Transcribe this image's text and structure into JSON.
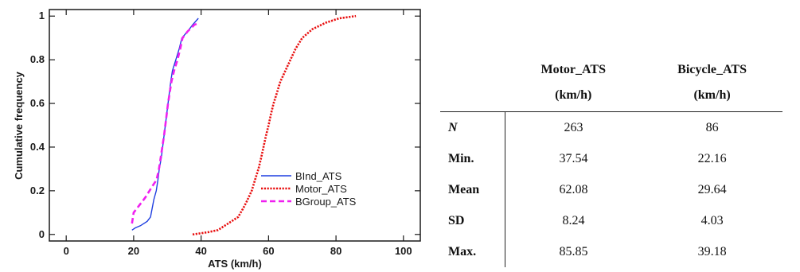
{
  "chart_data": {
    "type": "line",
    "title": "",
    "xlabel": "ATS (km/h)",
    "ylabel": "Cumulative frequency",
    "xlim": [
      -5,
      105
    ],
    "ylim": [
      -0.03,
      1.03
    ],
    "x_ticks": [
      0,
      20,
      40,
      60,
      80,
      100
    ],
    "y_ticks": [
      0,
      0.2,
      0.4,
      0.6,
      0.8,
      1
    ],
    "x_tick_labels": [
      "0",
      "20",
      "40",
      "60",
      "80",
      "100"
    ],
    "y_tick_labels": [
      "0",
      "0.2",
      "0.4",
      "0.6",
      "0.8",
      "1"
    ],
    "grid": false,
    "legend_position": "bottom-right",
    "series": [
      {
        "name": "BInd_ATS",
        "color": "#1f3fe0",
        "dash": "solid",
        "points": [
          [
            19.5,
            0.02
          ],
          [
            20.5,
            0.03
          ],
          [
            22,
            0.04
          ],
          [
            24,
            0.06
          ],
          [
            25,
            0.08
          ],
          [
            25.5,
            0.12
          ],
          [
            26,
            0.16
          ],
          [
            26.7,
            0.2
          ],
          [
            27.2,
            0.25
          ],
          [
            27.6,
            0.3
          ],
          [
            28.2,
            0.35
          ],
          [
            28.6,
            0.4
          ],
          [
            29,
            0.45
          ],
          [
            29.4,
            0.5
          ],
          [
            29.8,
            0.55
          ],
          [
            30.2,
            0.6
          ],
          [
            30.6,
            0.65
          ],
          [
            31,
            0.7
          ],
          [
            31.5,
            0.75
          ],
          [
            32.5,
            0.8
          ],
          [
            33.5,
            0.85
          ],
          [
            34.3,
            0.9
          ],
          [
            36,
            0.93
          ],
          [
            37.5,
            0.96
          ],
          [
            39.2,
            0.99
          ]
        ]
      },
      {
        "name": "Motor_ATS",
        "color": "#e81010",
        "dash": "dotted",
        "points": [
          [
            37.5,
            0.0
          ],
          [
            42,
            0.01
          ],
          [
            45,
            0.02
          ],
          [
            47,
            0.04
          ],
          [
            49,
            0.06
          ],
          [
            51,
            0.08
          ],
          [
            52.5,
            0.12
          ],
          [
            53.5,
            0.15
          ],
          [
            55,
            0.2
          ],
          [
            56,
            0.25
          ],
          [
            57,
            0.3
          ],
          [
            57.8,
            0.35
          ],
          [
            58.5,
            0.4
          ],
          [
            59.2,
            0.45
          ],
          [
            60,
            0.5
          ],
          [
            60.7,
            0.55
          ],
          [
            61.5,
            0.6
          ],
          [
            62.5,
            0.65
          ],
          [
            63.5,
            0.7
          ],
          [
            65,
            0.75
          ],
          [
            66.5,
            0.8
          ],
          [
            68,
            0.85
          ],
          [
            70,
            0.9
          ],
          [
            73,
            0.94
          ],
          [
            77,
            0.97
          ],
          [
            81,
            0.99
          ],
          [
            85.9,
            1.0
          ]
        ]
      },
      {
        "name": "BGroup_ATS",
        "color": "#f020f0",
        "dash": "dashed",
        "points": [
          [
            19.5,
            0.05
          ],
          [
            20,
            0.1
          ],
          [
            21.5,
            0.13
          ],
          [
            23.5,
            0.17
          ],
          [
            25.5,
            0.22
          ],
          [
            26.8,
            0.25
          ],
          [
            27.5,
            0.3
          ],
          [
            28,
            0.35
          ],
          [
            28.5,
            0.4
          ],
          [
            29,
            0.45
          ],
          [
            29.4,
            0.5
          ],
          [
            29.8,
            0.55
          ],
          [
            30.2,
            0.6
          ],
          [
            30.7,
            0.65
          ],
          [
            31.2,
            0.7
          ],
          [
            32,
            0.75
          ],
          [
            33,
            0.8
          ],
          [
            33.8,
            0.85
          ],
          [
            34.5,
            0.9
          ],
          [
            36,
            0.93
          ],
          [
            38,
            0.96
          ],
          [
            39.5,
            0.97
          ]
        ]
      }
    ]
  },
  "table": {
    "header_row1": [
      "",
      "Motor_ATS",
      "Bicycle_ATS"
    ],
    "header_row2": [
      "",
      "(km/h)",
      "(km/h)"
    ],
    "rows": [
      {
        "label": "N",
        "motor": "263",
        "bicycle": "86"
      },
      {
        "label": "Min.",
        "motor": "37.54",
        "bicycle": "22.16"
      },
      {
        "label": "Mean",
        "motor": "62.08",
        "bicycle": "29.64"
      },
      {
        "label": "SD",
        "motor": "8.24",
        "bicycle": "4.03"
      },
      {
        "label": "Max.",
        "motor": "85.85",
        "bicycle": "39.18"
      }
    ]
  }
}
